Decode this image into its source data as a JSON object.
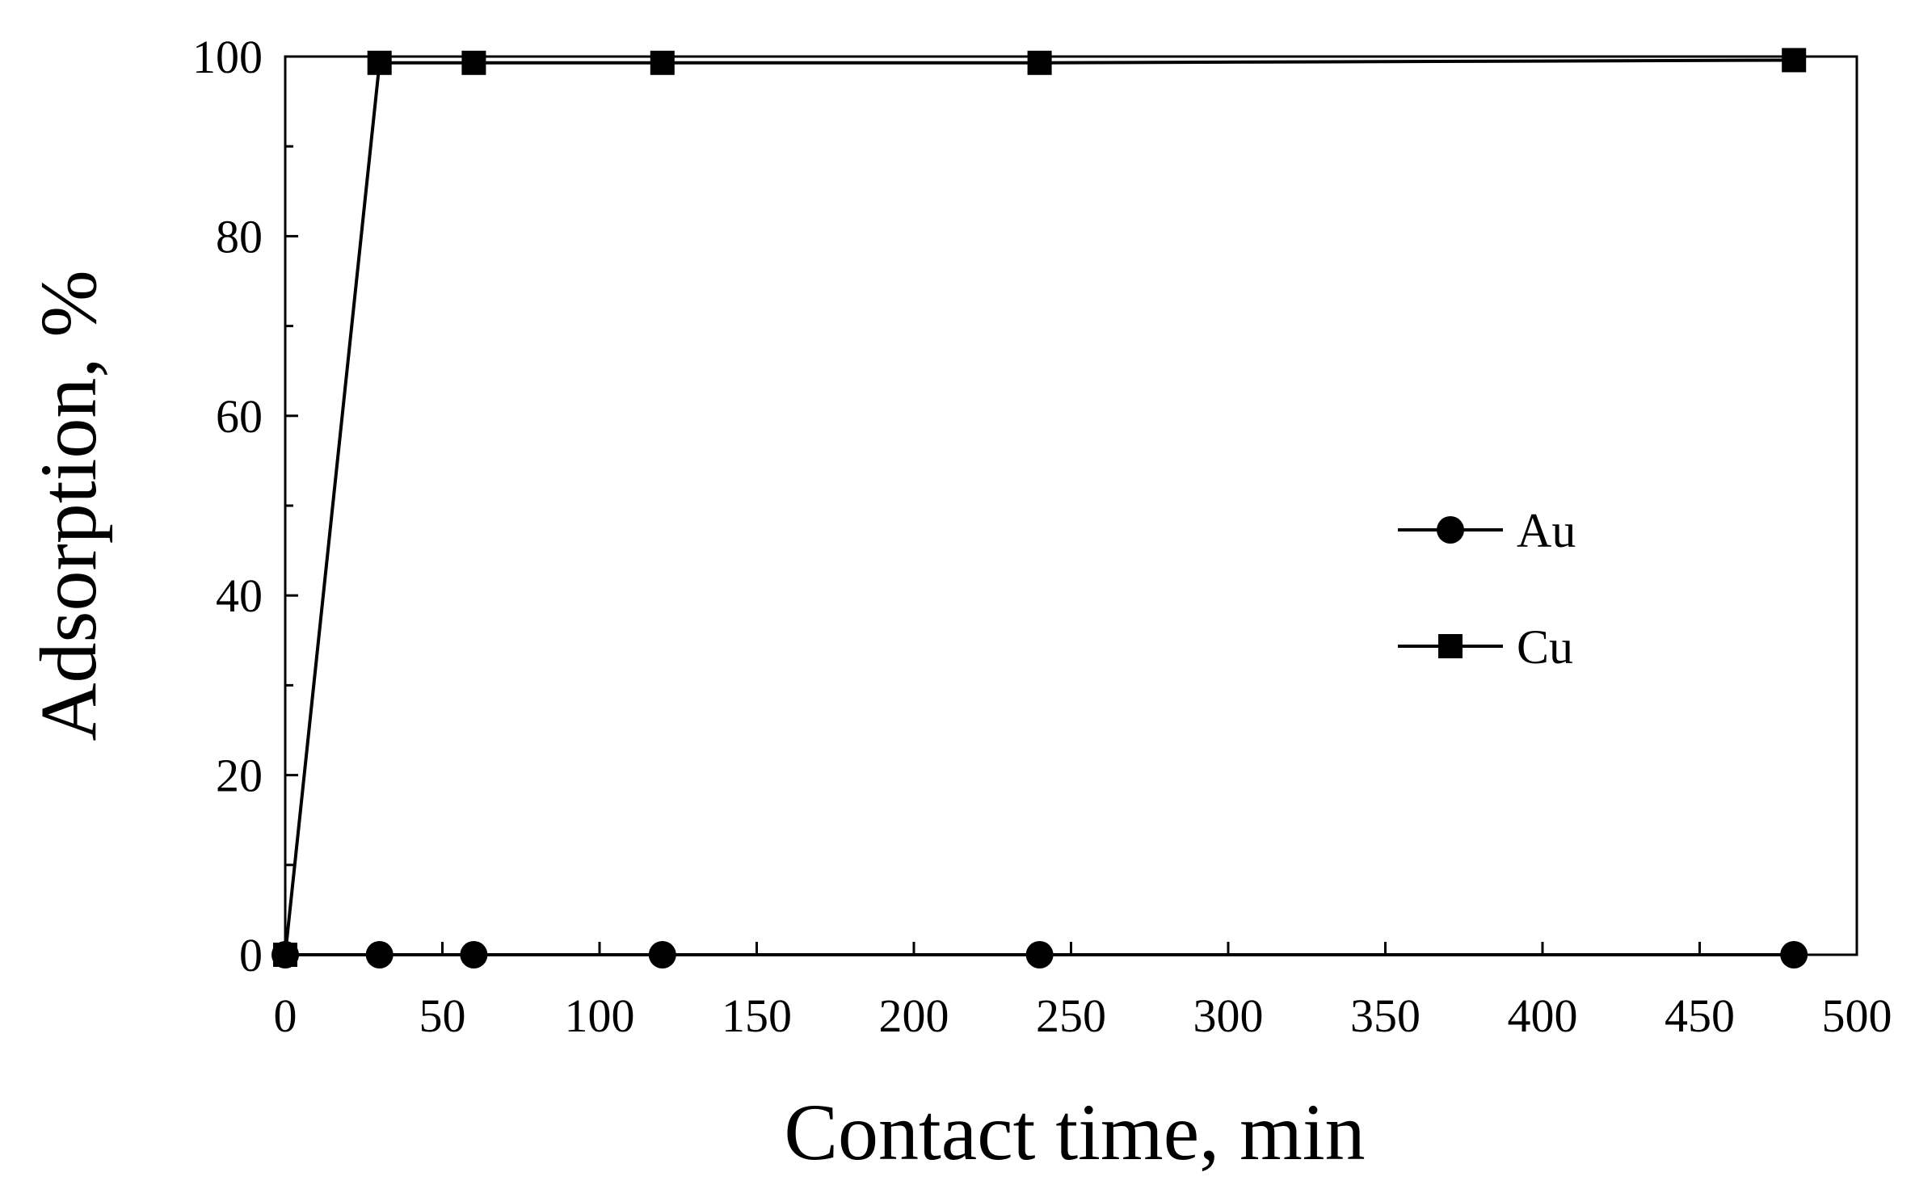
{
  "chart_data": {
    "type": "line",
    "title": "",
    "xlabel": "Contact time, min",
    "ylabel": "Adsorption, %",
    "xlim": [
      0,
      500
    ],
    "ylim": [
      0,
      100
    ],
    "x_major_ticks": [
      0,
      50,
      100,
      150,
      200,
      250,
      300,
      350,
      400,
      450,
      500
    ],
    "x_tick_labels": [
      "0",
      "50",
      "100",
      "150",
      "200",
      "250",
      "300",
      "350",
      "400",
      "450",
      "500"
    ],
    "y_major_ticks": [
      0,
      20,
      40,
      60,
      80,
      100
    ],
    "y_tick_labels": [
      "0",
      "20",
      "40",
      "60",
      "80",
      "100"
    ],
    "y_minor_ticks": [
      10,
      30,
      50,
      70,
      90
    ],
    "grid": false,
    "legend_position": "right",
    "series": [
      {
        "name": "Au",
        "marker": "circle",
        "color": "#000000",
        "x": [
          0,
          30,
          60,
          120,
          240,
          480
        ],
        "y": [
          0,
          0,
          0,
          0,
          0,
          0
        ]
      },
      {
        "name": "Cu",
        "marker": "square",
        "color": "#000000",
        "x": [
          0,
          30,
          60,
          120,
          240,
          480
        ],
        "y": [
          0,
          99.3,
          99.3,
          99.3,
          99.3,
          99.6
        ]
      }
    ]
  }
}
